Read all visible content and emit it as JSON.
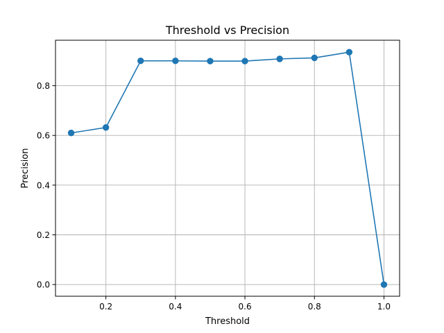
{
  "chart_data": {
    "type": "line",
    "title": "Threshold vs Precision",
    "xlabel": "Threshold",
    "ylabel": "Precision",
    "xlim": [
      0.055,
      1.045
    ],
    "ylim": [
      -0.047,
      0.983
    ],
    "xticks": [
      0.2,
      0.4,
      0.6,
      0.8,
      1.0
    ],
    "xtick_labels": [
      "0.2",
      "0.4",
      "0.6",
      "0.8",
      "1.0"
    ],
    "yticks": [
      0.0,
      0.2,
      0.4,
      0.6,
      0.8
    ],
    "ytick_labels": [
      "0.0",
      "0.2",
      "0.4",
      "0.6",
      "0.8"
    ],
    "grid": true,
    "color": "#1f77b4",
    "marker": "circle",
    "series": [
      {
        "x": [
          0.1,
          0.2,
          0.3,
          0.4,
          0.5,
          0.6,
          0.7,
          0.8,
          0.9,
          1.0
        ],
        "y": [
          0.61,
          0.632,
          0.9,
          0.9,
          0.899,
          0.899,
          0.908,
          0.912,
          0.935,
          0.0
        ]
      }
    ]
  }
}
